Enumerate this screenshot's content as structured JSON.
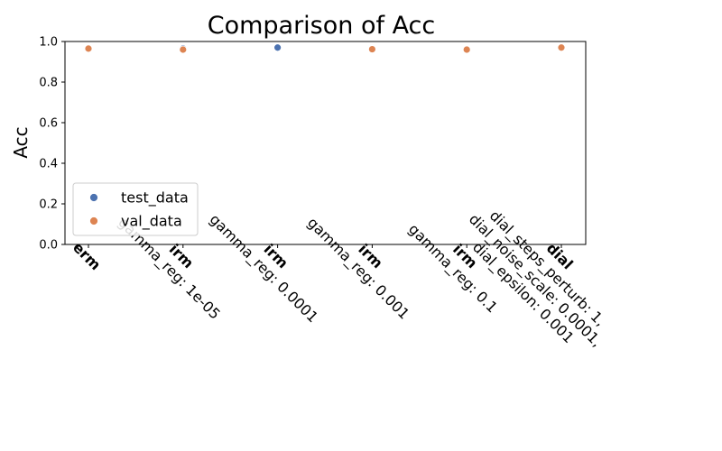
{
  "chart_data": {
    "type": "scatter",
    "title": "Comparison of Acc",
    "xlabel": "",
    "ylabel": "Acc",
    "ylim": [
      0,
      1.0
    ],
    "yticks": [
      "0.0",
      "0.2",
      "0.4",
      "0.6",
      "0.8",
      "1.0"
    ],
    "grid": false,
    "legend_placement": "lower-left",
    "categories": [
      {
        "method": "erm",
        "params": []
      },
      {
        "method": "irm",
        "params": [
          "gamma_reg: 1e-05"
        ]
      },
      {
        "method": "irm",
        "params": [
          "gamma_reg: 0.0001"
        ]
      },
      {
        "method": "irm",
        "params": [
          "gamma_reg: 0.001"
        ]
      },
      {
        "method": "irm",
        "params": [
          "gamma_reg: 0.1"
        ]
      },
      {
        "method": "dial",
        "params": [
          "dial_steps_perturb: 1,",
          "dial_noise_scale: 0.0001,",
          "dial_epsilon: 0.001"
        ]
      }
    ],
    "series": [
      {
        "name": "test_data",
        "color": "#4c72b0",
        "values": [
          0.965,
          0.965,
          0.97,
          0.962,
          0.96,
          0.97
        ]
      },
      {
        "name": "val_data",
        "color": "#dd8452",
        "values": [
          0.965,
          0.96,
          null,
          0.962,
          0.96,
          0.97
        ]
      }
    ]
  }
}
